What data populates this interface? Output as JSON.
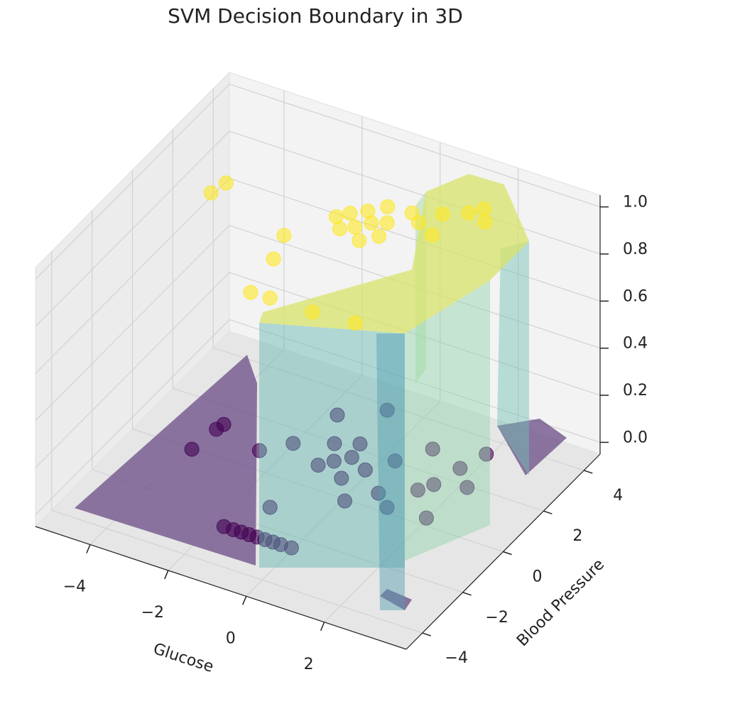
{
  "chart_data": {
    "type": "scatter3d",
    "title": "SVM Decision Boundary in 3D",
    "xlabel": "Glucose",
    "ylabel": "Blood Pressure",
    "xlim": [
      -5.4,
      4.1
    ],
    "ylim": [
      -4.8,
      4.8
    ],
    "zlim": [
      -0.05,
      1.05
    ],
    "xticks": [
      {
        "value": -4,
        "label": "−4"
      },
      {
        "value": -2,
        "label": "−2"
      },
      0,
      2
    ],
    "yticks": [
      {
        "value": -4,
        "label": "−4"
      },
      {
        "value": -2,
        "label": "−2"
      },
      0,
      2,
      4
    ],
    "zticks": [
      {
        "value": 0,
        "label": "0.0"
      },
      0.2,
      0.4,
      0.6,
      0.8,
      {
        "value": 1,
        "label": "1.0"
      }
    ],
    "grid": true,
    "series": [
      {
        "color": "#440154",
        "x": [
          -3.64,
          -3.55,
          -3.5,
          -2.31,
          -1.54,
          -1.3,
          -1.1,
          -0.9,
          -0.7,
          -0.5,
          -0.3,
          -0.1,
          0.17,
          -0.67,
          -0.4,
          -0.9,
          -0.2,
          0.1,
          -1.0,
          -0.5,
          2.2,
          1.9,
          2.13,
          1.24,
          -1.02,
          -1.49,
          -0.62,
          1.5,
          1.7,
          0.8,
          0.3,
          -1.8,
          2.4,
          1.0,
          0.5
        ],
        "y": [
          -0.46,
          0.58,
          0.85,
          0.32,
          -2.93,
          -2.93,
          -2.92,
          -2.92,
          -2.91,
          -2.91,
          -2.9,
          -2.9,
          -2.89,
          0.84,
          1.2,
          0.5,
          0.3,
          0.9,
          1.5,
          1.8,
          -0.13,
          2.12,
          2.97,
          -0.22,
          -1.65,
          2.59,
          3.38,
          0.8,
          1.2,
          0.2,
          -0.5,
          1.0,
          1.5,
          2.5,
          1.6
        ],
        "z": [
          0,
          0,
          0,
          0,
          0,
          0,
          0,
          0,
          0,
          0,
          0,
          0,
          0,
          0,
          0,
          0,
          0,
          0,
          0,
          0,
          0,
          0,
          0,
          0,
          0,
          0,
          0,
          0,
          0,
          0,
          0,
          0,
          0,
          0,
          0
        ]
      },
      {
        "color": "#fde725",
        "x": [
          -3.67,
          -3.57,
          -1.45,
          -1.2,
          -1.0,
          -0.52,
          -0.24,
          0.0,
          -0.5,
          0.3,
          0.59,
          1.68,
          2.17,
          1.6,
          0.57,
          -0.8,
          0.1,
          0.9,
          1.2,
          -0.3,
          0.4,
          1.9,
          0.0,
          -0.6,
          1.4
        ],
        "y": [
          0.55,
          1.1,
          -0.13,
          -1.13,
          -2.65,
          -2.62,
          1.05,
          1.4,
          0.8,
          1.6,
          2.27,
          2.97,
          2.83,
          -2.5,
          -2.62,
          1.2,
          0.6,
          2.0,
          2.6,
          1.8,
          1.0,
          3.3,
          2.2,
          1.5,
          1.7
        ],
        "z": [
          1,
          1,
          1,
          1,
          1,
          1,
          1,
          1,
          1,
          1,
          1,
          1,
          1,
          1,
          1,
          1,
          1,
          1,
          1,
          1,
          1,
          1,
          1,
          1,
          1
        ]
      }
    ]
  }
}
